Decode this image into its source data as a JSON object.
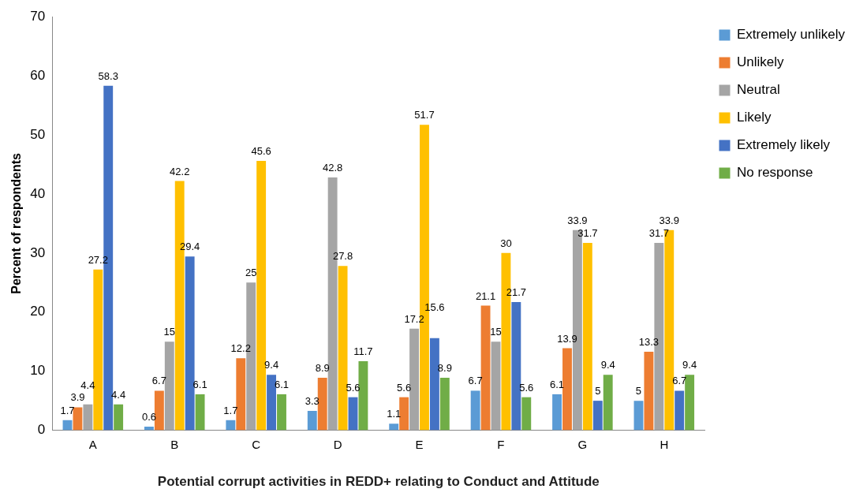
{
  "chart_data": {
    "type": "bar",
    "xlabel": "Potential corrupt activities in REDD+ relating to Conduct and Attitude",
    "ylabel": "Percent of respondents",
    "categories": [
      "A",
      "B",
      "C",
      "D",
      "E",
      "F",
      "G",
      "H"
    ],
    "series": [
      {
        "name": "Extremely unlikely",
        "color": "#5b9bd5",
        "values": [
          1.7,
          0.6,
          1.7,
          3.3,
          1.1,
          6.7,
          6.1,
          5
        ]
      },
      {
        "name": "Unlikely",
        "color": "#ed7d31",
        "values": [
          3.9,
          6.7,
          12.2,
          8.9,
          5.6,
          21.1,
          13.9,
          13.3
        ]
      },
      {
        "name": "Neutral",
        "color": "#a5a5a5",
        "values": [
          4.4,
          15,
          25,
          42.8,
          17.2,
          15,
          33.9,
          31.7
        ]
      },
      {
        "name": "Likely",
        "color": "#ffc000",
        "values": [
          27.2,
          42.2,
          45.6,
          27.8,
          51.7,
          30,
          31.7,
          33.9
        ]
      },
      {
        "name": "Extremely likely",
        "color": "#4472c4",
        "values": [
          58.3,
          29.4,
          9.4,
          5.6,
          15.6,
          21.7,
          5,
          6.7
        ]
      },
      {
        "name": "No response",
        "color": "#70ad47",
        "values": [
          4.4,
          6.1,
          6.1,
          11.7,
          8.9,
          5.6,
          9.4,
          9.4
        ]
      }
    ],
    "ylim": [
      0,
      70
    ],
    "yticks": [
      0,
      10,
      20,
      30,
      40,
      50,
      60,
      70
    ],
    "grid": false,
    "legend": "top right",
    "data_labels": true
  }
}
